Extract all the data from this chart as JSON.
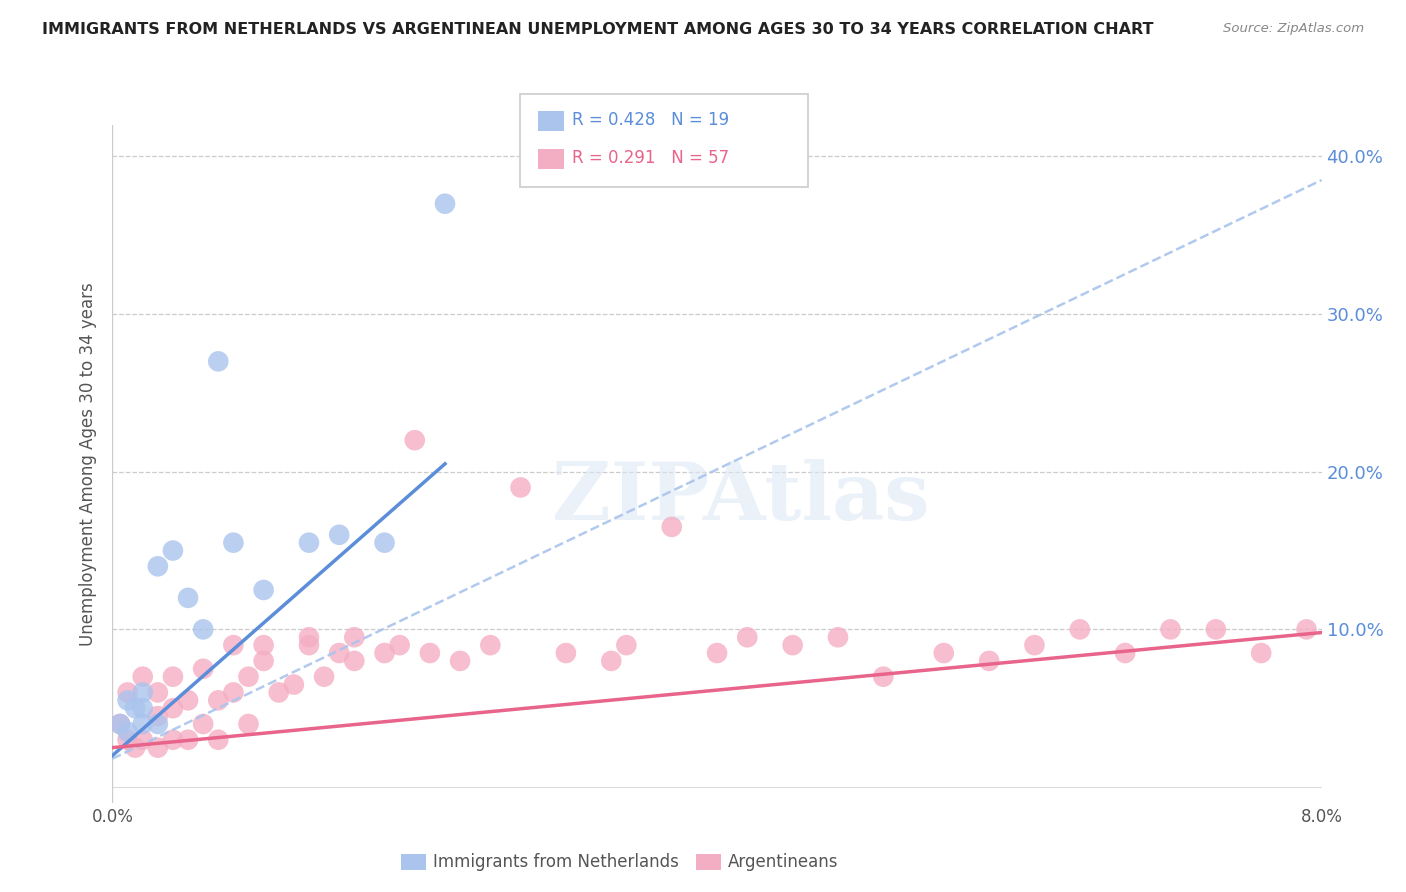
{
  "title": "IMMIGRANTS FROM NETHERLANDS VS ARGENTINEAN UNEMPLOYMENT AMONG AGES 30 TO 34 YEARS CORRELATION CHART",
  "source": "Source: ZipAtlas.com",
  "ylabel": "Unemployment Among Ages 30 to 34 years",
  "legend_1_label": "Immigrants from Netherlands",
  "legend_1_r": "0.428",
  "legend_1_n": "19",
  "legend_2_label": "Argentineans",
  "legend_2_r": "0.291",
  "legend_2_n": "57",
  "blue_color": "#aac4ed",
  "pink_color": "#f4aec4",
  "trend_blue": "#5b8dd9",
  "trend_pink": "#e8648a",
  "trend_dashed_color": "#aac4ed",
  "background_color": "#ffffff",
  "watermark": "ZIPAtlas",
  "xlim": [
    0.0,
    0.08
  ],
  "ylim": [
    -0.01,
    0.42
  ],
  "yticks": [
    0.0,
    0.1,
    0.2,
    0.3,
    0.4
  ],
  "ytick_labels": [
    "",
    "10.0%",
    "20.0%",
    "30.0%",
    "40.0%"
  ],
  "blue_line_x0": 0.0,
  "blue_line_y0": 0.02,
  "blue_line_x1": 0.022,
  "blue_line_y1": 0.205,
  "pink_line_x0": 0.0,
  "pink_line_y0": 0.025,
  "pink_line_x1": 0.08,
  "pink_line_y1": 0.098,
  "dashed_line_x0": 0.0,
  "dashed_line_y0": 0.018,
  "dashed_line_x1": 0.08,
  "dashed_line_y1": 0.385,
  "blue_points_x": [
    0.0005,
    0.001,
    0.001,
    0.0015,
    0.002,
    0.002,
    0.002,
    0.003,
    0.003,
    0.004,
    0.005,
    0.006,
    0.007,
    0.008,
    0.01,
    0.013,
    0.015,
    0.018,
    0.022
  ],
  "blue_points_y": [
    0.04,
    0.035,
    0.055,
    0.05,
    0.04,
    0.06,
    0.05,
    0.04,
    0.14,
    0.15,
    0.12,
    0.1,
    0.27,
    0.155,
    0.125,
    0.155,
    0.16,
    0.155,
    0.37
  ],
  "pink_points_x": [
    0.0005,
    0.001,
    0.001,
    0.0015,
    0.002,
    0.002,
    0.003,
    0.003,
    0.003,
    0.004,
    0.004,
    0.004,
    0.005,
    0.005,
    0.006,
    0.006,
    0.007,
    0.007,
    0.008,
    0.008,
    0.009,
    0.009,
    0.01,
    0.01,
    0.011,
    0.012,
    0.013,
    0.013,
    0.014,
    0.015,
    0.016,
    0.016,
    0.018,
    0.019,
    0.02,
    0.021,
    0.023,
    0.025,
    0.027,
    0.03,
    0.033,
    0.034,
    0.037,
    0.04,
    0.042,
    0.045,
    0.048,
    0.051,
    0.055,
    0.058,
    0.061,
    0.064,
    0.067,
    0.07,
    0.073,
    0.076,
    0.079
  ],
  "pink_points_y": [
    0.04,
    0.06,
    0.03,
    0.025,
    0.03,
    0.07,
    0.025,
    0.045,
    0.06,
    0.03,
    0.05,
    0.07,
    0.03,
    0.055,
    0.04,
    0.075,
    0.03,
    0.055,
    0.06,
    0.09,
    0.04,
    0.07,
    0.08,
    0.09,
    0.06,
    0.065,
    0.09,
    0.095,
    0.07,
    0.085,
    0.08,
    0.095,
    0.085,
    0.09,
    0.22,
    0.085,
    0.08,
    0.09,
    0.19,
    0.085,
    0.08,
    0.09,
    0.165,
    0.085,
    0.095,
    0.09,
    0.095,
    0.07,
    0.085,
    0.08,
    0.09,
    0.1,
    0.085,
    0.1,
    0.1,
    0.085,
    0.1
  ]
}
